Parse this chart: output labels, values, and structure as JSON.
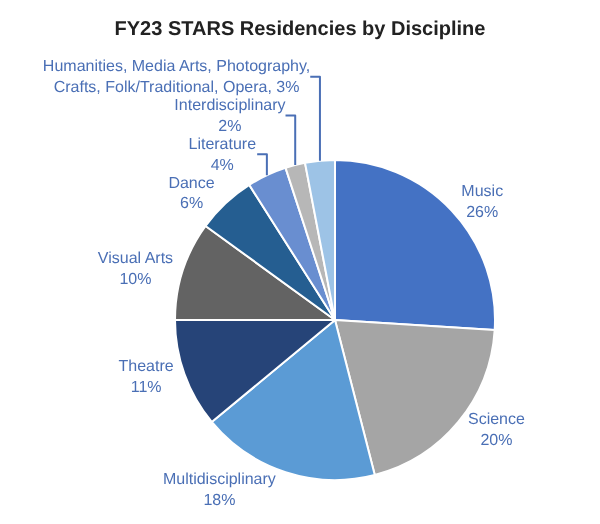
{
  "chart_data": {
    "type": "pie",
    "title": "FY23 STARS Residencies by Discipline",
    "categories": [
      "Music",
      "Science",
      "Multidisciplinary",
      "Theatre",
      "Visual Arts",
      "Dance",
      "Literature",
      "Interdisciplinary",
      "Humanities, Media Arts, Photography, Crafts, Folk/Traditional, Opera"
    ],
    "values": [
      26,
      20,
      18,
      11,
      10,
      6,
      4,
      2,
      3
    ],
    "value_labels": [
      "26%",
      "20%",
      "18%",
      "11%",
      "10%",
      "6%",
      "4%",
      "2%",
      "3%"
    ],
    "colors": [
      "#4472c4",
      "#a5a5a5",
      "#5b9bd5",
      "#264478",
      "#636363",
      "#255e91",
      "#698ed0",
      "#b7b7b7",
      "#9dc3e6"
    ],
    "legend": false
  }
}
